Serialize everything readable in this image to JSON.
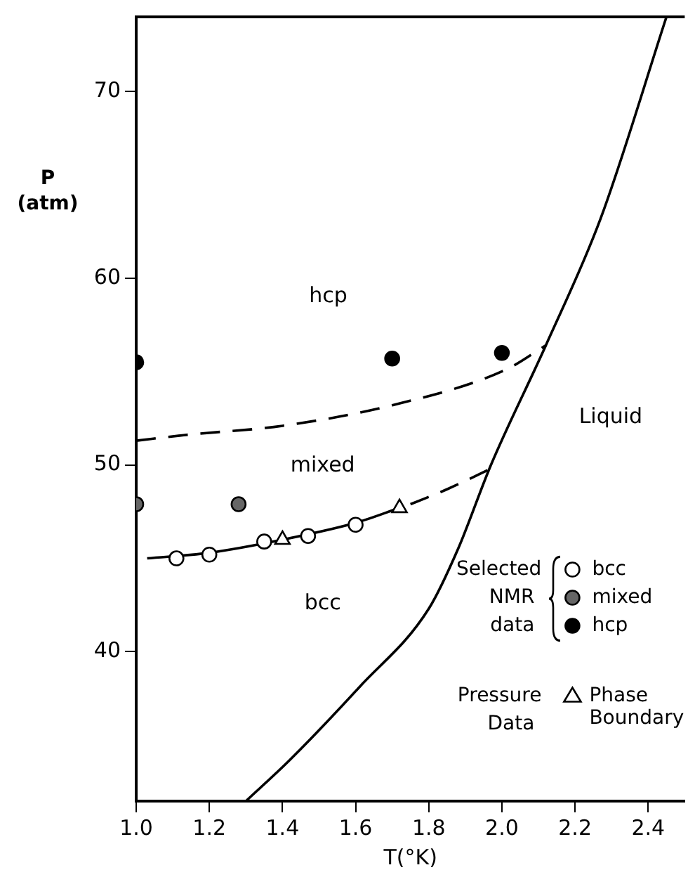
{
  "chart_data": {
    "type": "scatter",
    "xlabel": "T(°K)",
    "ylabel": "P (atm)",
    "xlim": [
      1.0,
      2.5
    ],
    "ylim": [
      32,
      74
    ],
    "xticks": [
      {
        "value": 1.0,
        "label": "1.0"
      },
      {
        "value": 1.2,
        "label": "1.2"
      },
      {
        "value": 1.4,
        "label": "1.4"
      },
      {
        "value": 1.6,
        "label": "1.6"
      },
      {
        "value": 1.8,
        "label": "1.8"
      },
      {
        "value": 2.0,
        "label": "2.0"
      },
      {
        "value": 2.2,
        "label": "2.2"
      },
      {
        "value": 2.4,
        "label": "2.4"
      }
    ],
    "yticks": [
      40,
      50,
      60,
      70
    ],
    "grid": false,
    "legend": "bottom right",
    "series": [
      {
        "name": "bcc",
        "marker": "circle",
        "color": "#ffffff",
        "x": [
          1.11,
          1.2,
          1.35,
          1.47,
          1.6
        ],
        "values": [
          45.0,
          45.2,
          45.9,
          46.2,
          46.8
        ]
      },
      {
        "name": "mixed",
        "marker": "circle",
        "color": "#666666",
        "x": [
          1.0,
          1.28
        ],
        "values": [
          47.9,
          47.9
        ]
      },
      {
        "name": "hcp",
        "marker": "circle",
        "color": "#000000",
        "x": [
          1.0,
          1.7,
          2.0
        ],
        "values": [
          55.5,
          55.7,
          56.0
        ]
      },
      {
        "name": "Phase Boundary",
        "marker": "triangle",
        "color": "#ffffff",
        "x": [
          1.4,
          1.72
        ],
        "values": [
          46.0,
          47.7
        ]
      },
      {
        "type": "line",
        "marker": "none",
        "line_style": "solid",
        "color": "#000000",
        "x": [
          1.03,
          1.2,
          1.4,
          1.6,
          1.72
        ],
        "values": [
          45.0,
          45.3,
          46.0,
          46.9,
          47.7
        ]
      },
      {
        "type": "line",
        "marker": "none",
        "line_style": "dashed",
        "color": "#000000",
        "x": [
          1.75,
          1.85,
          1.98
        ],
        "values": [
          47.9,
          48.7,
          49.9
        ]
      },
      {
        "type": "line",
        "marker": "none",
        "line_style": "dashed",
        "color": "#000000",
        "x": [
          1.0,
          1.13,
          1.4,
          1.7,
          2.01,
          2.12
        ],
        "values": [
          51.3,
          51.6,
          52.1,
          53.2,
          55.1,
          56.4
        ]
      },
      {
        "type": "line",
        "marker": "none",
        "line_style": "solid",
        "color": "#000000",
        "x": [
          1.3,
          1.42,
          1.61,
          1.8,
          1.88,
          1.97,
          2.12,
          2.27,
          2.45
        ],
        "values": [
          32,
          34.2,
          38.1,
          42.3,
          45.5,
          50.0,
          56.4,
          63.2,
          74
        ]
      }
    ],
    "annotations": [
      "hcp",
      "mixed",
      "bcc",
      "Liquid",
      "Selected NMR data",
      "Pressure Data"
    ]
  }
}
